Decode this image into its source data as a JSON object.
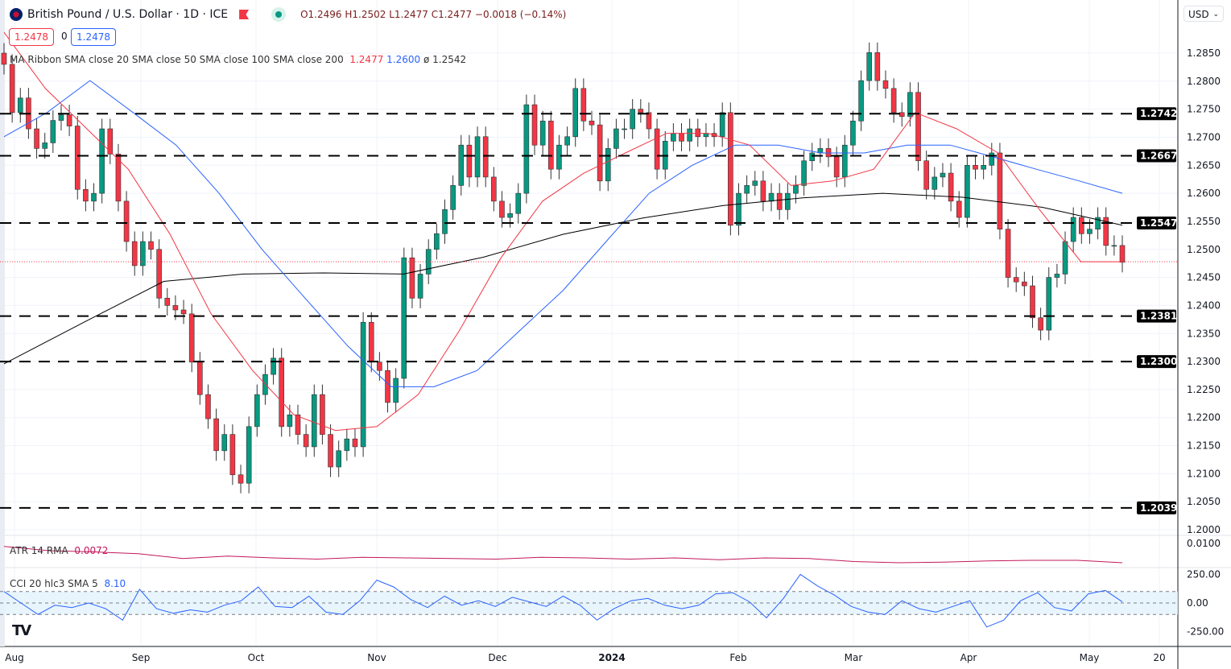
{
  "header": {
    "title": "British Pound / U.S. Dollar · 1D · ICE",
    "open": "O1.2496",
    "high": "H1.2502",
    "low": "L1.2477",
    "close": "C1.2477",
    "change": "−0.0018 (−0.14%)"
  },
  "price_boxes": {
    "bid": "1.2478",
    "spread": "0",
    "ask": "1.2478"
  },
  "currency_select": "USD",
  "legend": {
    "ma": "MA Ribbon SMA close 20 SMA close 50 SMA close 100 SMA close 200",
    "ma20": "1.2477",
    "ma50": "1.2600",
    "ma200": "ø 1.2542",
    "atr": "ATR 14 RMA",
    "atr_val": "0.0072",
    "cci": "CCI 20 hlc3 SMA 5",
    "cci_val": "8.10"
  },
  "colors": {
    "up": "#089981",
    "down": "#f23645",
    "sma20": "#f23645",
    "sma50": "#2962ff",
    "sma200": "#000000",
    "atr": "#c2185b",
    "cci": "#2962ff"
  },
  "chart_data": {
    "type": "candlestick",
    "price_ticks": [
      "1.2850",
      "1.2800",
      "1.2750",
      "1.2700",
      "1.2650",
      "1.2600",
      "1.2550",
      "1.2500",
      "1.2450",
      "1.2400",
      "1.2350",
      "1.2300",
      "1.2250",
      "1.2200",
      "1.2150",
      "1.2100",
      "1.2050",
      "1.2000"
    ],
    "ylim": [
      1.2,
      1.285
    ],
    "x_ticks": [
      "Aug",
      "Sep",
      "Oct",
      "Nov",
      "Dec",
      "2024",
      "Feb",
      "Mar",
      "Apr",
      "May",
      "20"
    ],
    "levels": [
      "1.2742",
      "1.2667",
      "1.2547",
      "1.2381",
      "1.2300",
      "1.2039"
    ],
    "last_price": 1.2478,
    "closes": [
      1.283,
      1.2744,
      1.277,
      1.2715,
      1.268,
      1.269,
      1.273,
      1.274,
      1.272,
      1.2607,
      1.2586,
      1.26,
      1.2715,
      1.267,
      1.2586,
      1.2514,
      1.2471,
      1.2514,
      1.25,
      1.2413,
      1.24,
      1.2392,
      1.2385,
      1.2299,
      1.2241,
      1.2198,
      1.2141,
      1.217,
      1.2098,
      1.2083,
      1.2184,
      1.2241,
      1.2277,
      1.2306,
      1.2184,
      1.2205,
      1.217,
      1.2148,
      1.2241,
      1.217,
      1.2112,
      1.2141,
      1.2162,
      1.2148,
      1.237,
      1.2299,
      1.2284,
      1.2227,
      1.227,
      1.2485,
      1.2413,
      1.2456,
      1.25,
      1.2528,
      1.2571,
      1.2614,
      1.2686,
      1.2629,
      1.2701,
      1.2629,
      1.2586,
      1.2557,
      1.2564,
      1.26,
      1.2758,
      1.2686,
      1.2729,
      1.2643,
      1.2686,
      1.2701,
      1.2787,
      1.2729,
      1.2722,
      1.2622,
      1.268,
      1.2715,
      1.2715,
      1.275,
      1.2744,
      1.2715,
      1.2643,
      1.2693,
      1.2707,
      1.2693,
      1.2715,
      1.2701,
      1.2707,
      1.2701,
      1.2744,
      1.2543,
      1.26,
      1.2614,
      1.2622,
      1.2586,
      1.26,
      1.2571,
      1.26,
      1.2614,
      1.2658,
      1.2672,
      1.268,
      1.2665,
      1.2629,
      1.2686,
      1.2729,
      1.2801,
      1.2851,
      1.2801,
      1.2787,
      1.2744,
      1.2737,
      1.278,
      1.2658,
      1.2607,
      1.2629,
      1.2636,
      1.2586,
      1.2557,
      1.265,
      1.2643,
      1.265,
      1.2672,
      1.2536,
      1.245,
      1.2442,
      1.2435,
      1.2378,
      1.2356,
      1.245,
      1.2456,
      1.2514,
      1.2557,
      1.2528,
      1.2536,
      1.2557,
      1.2507,
      1.2507,
      1.2477
    ],
    "sma20": [
      1.2887,
      1.2787,
      1.2715,
      1.2643,
      1.2528,
      1.2385,
      1.2284,
      1.2205,
      1.2177,
      1.2184,
      1.2241,
      1.2356,
      1.2485,
      1.2586,
      1.2636,
      1.2672,
      1.2707,
      1.2707,
      1.2686,
      1.2614,
      1.2622,
      1.2643,
      1.2744,
      1.2715,
      1.2672,
      1.2571,
      1.2478,
      1.2478
    ],
    "sma50": [
      1.2701,
      1.2744,
      1.2801,
      1.2744,
      1.2686,
      1.26,
      1.25,
      1.2413,
      1.2327,
      1.2255,
      1.2255,
      1.2284,
      1.2356,
      1.2427,
      1.2514,
      1.26,
      1.265,
      1.2686,
      1.2686,
      1.2672,
      1.2672,
      1.2686,
      1.2686,
      1.2665,
      1.2643,
      1.2622,
      1.26
    ],
    "sma200": [
      1.2296,
      1.237,
      1.2443,
      1.2456,
      1.2458,
      1.2456,
      1.2486,
      1.2527,
      1.2556,
      1.2578,
      1.2592,
      1.26,
      1.2593,
      1.2575,
      1.2543
    ],
    "atr": {
      "tick": "0.0100",
      "values": [
        0.0095,
        0.0088,
        0.0086,
        0.0083,
        0.0075,
        0.0079,
        0.0076,
        0.0074,
        0.0077,
        0.0076,
        0.0075,
        0.0074,
        0.0077,
        0.0076,
        0.0074,
        0.0076,
        0.0073,
        0.0076,
        0.0075,
        0.007,
        0.0068,
        0.0069,
        0.0071,
        0.0072,
        0.0072,
        0.0068
      ]
    },
    "cci": {
      "ticks": [
        "250.00",
        "0.00",
        "-250.00"
      ],
      "bands": [
        100,
        -100
      ],
      "values": [
        100,
        0,
        -100,
        -20,
        -40,
        0,
        -50,
        -150,
        120,
        -50,
        -90,
        -60,
        -80,
        -20,
        20,
        140,
        -30,
        -40,
        60,
        -80,
        -100,
        20,
        200,
        140,
        30,
        -40,
        60,
        -20,
        20,
        -30,
        50,
        10,
        -30,
        60,
        -20,
        -150,
        -50,
        20,
        40,
        -20,
        -50,
        -20,
        80,
        90,
        10,
        -130,
        40,
        250,
        150,
        70,
        -30,
        -80,
        -100,
        20,
        -50,
        -80,
        -30,
        20,
        -210,
        -150,
        20,
        90,
        -40,
        -70,
        80,
        110,
        10
      ]
    }
  }
}
